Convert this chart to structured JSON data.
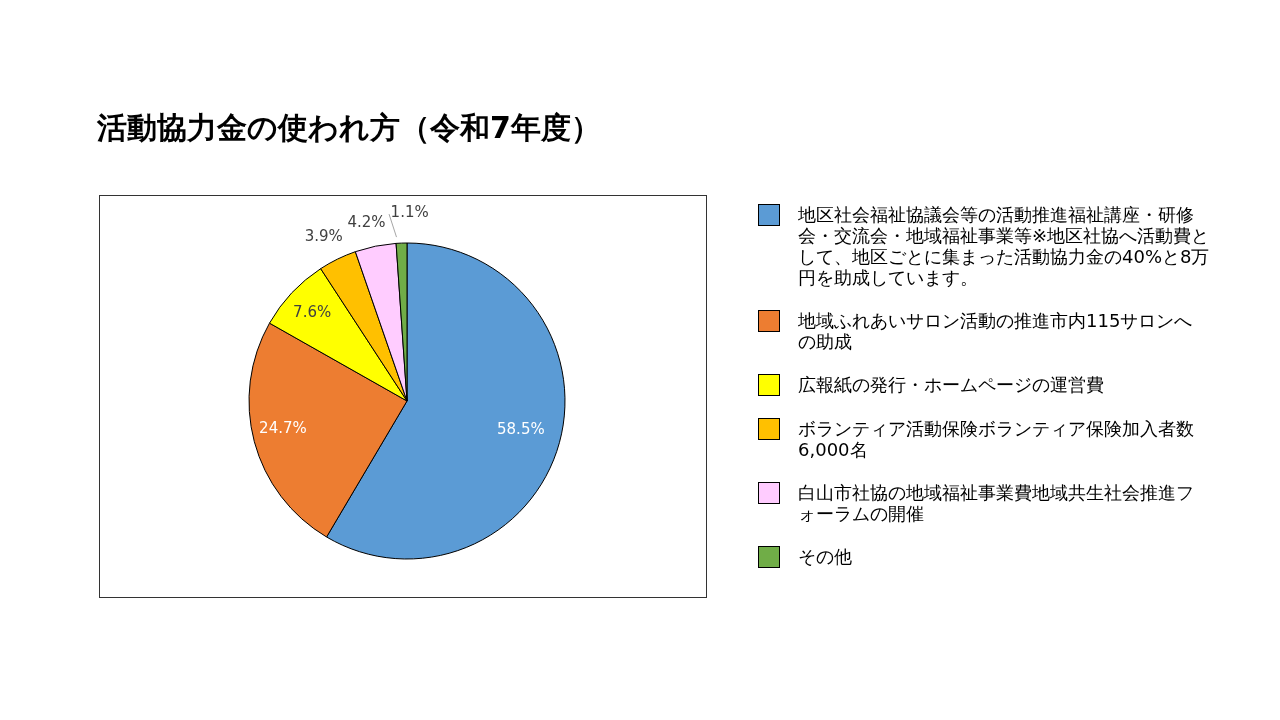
{
  "chart_data": {
    "type": "pie",
    "title": "活動協力金の使われ方（令和7年度）",
    "categories": [
      "地区社会福祉協議会等の活動推進福祉講座・研修会・交流会・地域福祉事業等※地区社協へ活動費として、地区ごとに集まった活動協力金の40%と8万円を助成しています。",
      "地域ふれあいサロン活動の推進市内115サロンへの助成",
      "広報紙の発行・ホームページの運営費",
      "ボランティア活動保険ボランティア保険加入者数　6,000名",
      "白山市社協の地域福祉事業費地域共生社会推進フォーラムの開催",
      "その他"
    ],
    "values": [
      58.5,
      24.7,
      7.6,
      3.9,
      4.2,
      1.1
    ],
    "colors": [
      "#5b9bd5",
      "#ed7d31",
      "#ffff00",
      "#ffc000",
      "#ffccff",
      "#70ad47"
    ],
    "value_labels": [
      "58.5%",
      "24.7%",
      "7.6%",
      "3.9%",
      "4.2%",
      "1.1%"
    ],
    "legend": "right"
  }
}
